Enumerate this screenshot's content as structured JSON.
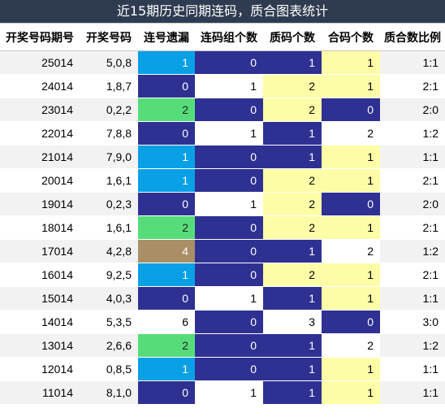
{
  "title": "近15期历史同期连码，质合图表统计",
  "headers": [
    "开奖号码期号",
    "开奖号码",
    "连号遗漏",
    "连码组个数",
    "质码个数",
    "合码个数",
    "质合数比例"
  ],
  "colors": {
    "blue": "#0aa0e6",
    "green": "#56dd7a",
    "navy": "#2e3192",
    "brown": "#a98e66",
    "yellow": "#fdfda8",
    "header_bg": "#2f3b50"
  },
  "rows": [
    {
      "issue": "25014",
      "numbers": "5,0,8",
      "miss": "1",
      "miss_color": "blue",
      "groups": "0",
      "groups_color": "navy",
      "prime": "1",
      "prime_color": "navy",
      "composite": "1",
      "composite_color": "yellow",
      "ratio": "1:1"
    },
    {
      "issue": "24014",
      "numbers": "1,8,7",
      "miss": "0",
      "miss_color": "navy",
      "groups": "1",
      "groups_color": "white",
      "prime": "2",
      "prime_color": "yellow",
      "composite": "1",
      "composite_color": "yellow",
      "ratio": "2:1"
    },
    {
      "issue": "23014",
      "numbers": "0,2,2",
      "miss": "2",
      "miss_color": "green",
      "groups": "0",
      "groups_color": "navy",
      "prime": "2",
      "prime_color": "yellow",
      "composite": "0",
      "composite_color": "navy",
      "ratio": "2:0"
    },
    {
      "issue": "22014",
      "numbers": "7,8,8",
      "miss": "0",
      "miss_color": "navy",
      "groups": "1",
      "groups_color": "white",
      "prime": "1",
      "prime_color": "navy",
      "composite": "2",
      "composite_color": "white",
      "ratio": "1:2"
    },
    {
      "issue": "21014",
      "numbers": "7,9,0",
      "miss": "1",
      "miss_color": "blue",
      "groups": "0",
      "groups_color": "navy",
      "prime": "1",
      "prime_color": "navy",
      "composite": "1",
      "composite_color": "yellow",
      "ratio": "1:1"
    },
    {
      "issue": "20014",
      "numbers": "1,6,1",
      "miss": "1",
      "miss_color": "blue",
      "groups": "0",
      "groups_color": "navy",
      "prime": "2",
      "prime_color": "yellow",
      "composite": "1",
      "composite_color": "yellow",
      "ratio": "2:1"
    },
    {
      "issue": "19014",
      "numbers": "0,2,3",
      "miss": "0",
      "miss_color": "navy",
      "groups": "1",
      "groups_color": "white",
      "prime": "2",
      "prime_color": "yellow",
      "composite": "0",
      "composite_color": "navy",
      "ratio": "2:0"
    },
    {
      "issue": "18014",
      "numbers": "1,6,1",
      "miss": "2",
      "miss_color": "green",
      "groups": "0",
      "groups_color": "navy",
      "prime": "2",
      "prime_color": "yellow",
      "composite": "1",
      "composite_color": "yellow",
      "ratio": "2:1"
    },
    {
      "issue": "17014",
      "numbers": "4,2,8",
      "miss": "4",
      "miss_color": "brown",
      "groups": "0",
      "groups_color": "navy",
      "prime": "1",
      "prime_color": "navy",
      "composite": "2",
      "composite_color": "white",
      "ratio": "1:2"
    },
    {
      "issue": "16014",
      "numbers": "9,2,5",
      "miss": "1",
      "miss_color": "blue",
      "groups": "0",
      "groups_color": "navy",
      "prime": "2",
      "prime_color": "yellow",
      "composite": "1",
      "composite_color": "yellow",
      "ratio": "2:1"
    },
    {
      "issue": "15014",
      "numbers": "4,0,3",
      "miss": "0",
      "miss_color": "navy",
      "groups": "1",
      "groups_color": "white",
      "prime": "1",
      "prime_color": "navy",
      "composite": "1",
      "composite_color": "yellow",
      "ratio": "1:1"
    },
    {
      "issue": "14014",
      "numbers": "5,3,5",
      "miss": "6",
      "miss_color": "white",
      "groups": "0",
      "groups_color": "navy",
      "prime": "3",
      "prime_color": "white",
      "composite": "0",
      "composite_color": "navy",
      "ratio": "3:0"
    },
    {
      "issue": "13014",
      "numbers": "2,6,6",
      "miss": "2",
      "miss_color": "green",
      "groups": "0",
      "groups_color": "navy",
      "prime": "1",
      "prime_color": "navy",
      "composite": "2",
      "composite_color": "white",
      "ratio": "1:2"
    },
    {
      "issue": "12014",
      "numbers": "0,8,5",
      "miss": "1",
      "miss_color": "blue",
      "groups": "0",
      "groups_color": "navy",
      "prime": "1",
      "prime_color": "navy",
      "composite": "1",
      "composite_color": "yellow",
      "ratio": "1:1"
    },
    {
      "issue": "11014",
      "numbers": "8,1,0",
      "miss": "0",
      "miss_color": "navy",
      "groups": "1",
      "groups_color": "white",
      "prime": "1",
      "prime_color": "navy",
      "composite": "1",
      "composite_color": "yellow",
      "ratio": "1:1"
    }
  ]
}
